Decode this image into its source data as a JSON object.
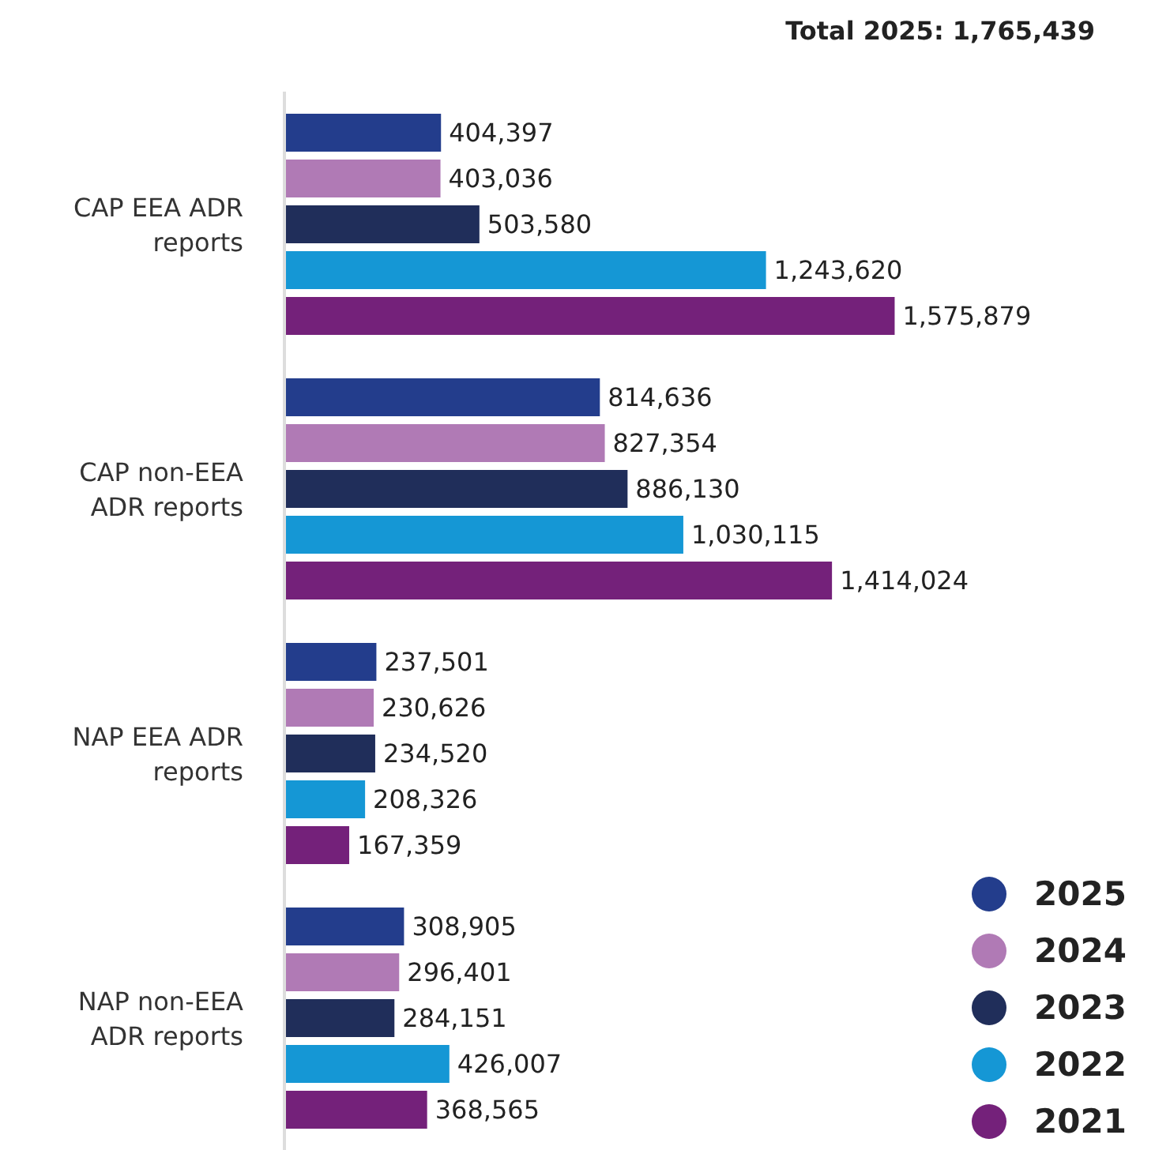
{
  "chart_data": {
    "type": "bar",
    "orientation": "horizontal",
    "title": "Total 2025: 1,765,439",
    "categories": [
      "CAP EEA ADR reports",
      "CAP non-EEA ADR reports",
      "NAP EEA ADR reports",
      "NAP non-EEA ADR reports"
    ],
    "series": [
      {
        "name": "2025",
        "color": "#233d8c",
        "values": [
          404397,
          814636,
          237501,
          308905
        ],
        "value_labels": [
          "404,397",
          "814,636",
          "237,501",
          "308,905"
        ]
      },
      {
        "name": "2024",
        "color": "#b07ab5",
        "values": [
          403036,
          827354,
          230626,
          296401
        ],
        "value_labels": [
          "403,036",
          "827,354",
          "230,626",
          "296,401"
        ]
      },
      {
        "name": "2023",
        "color": "#202e5a",
        "values": [
          503580,
          886130,
          234520,
          284151
        ],
        "value_labels": [
          "503,580",
          "886,130",
          "234,520",
          "284,151"
        ]
      },
      {
        "name": "2022",
        "color": "#1597d5",
        "values": [
          1243620,
          1030115,
          208326,
          426007
        ],
        "value_labels": [
          "1,243,620",
          "1,030,115",
          "208,326",
          "426,007"
        ]
      },
      {
        "name": "2021",
        "color": "#74217a",
        "values": [
          1575879,
          1414024,
          167359,
          368565
        ],
        "value_labels": [
          "1,575,879",
          "1,414,024",
          "167,359",
          "368,565"
        ]
      }
    ],
    "tick_labels": "y",
    "grid": false,
    "legend": "bottom right"
  }
}
